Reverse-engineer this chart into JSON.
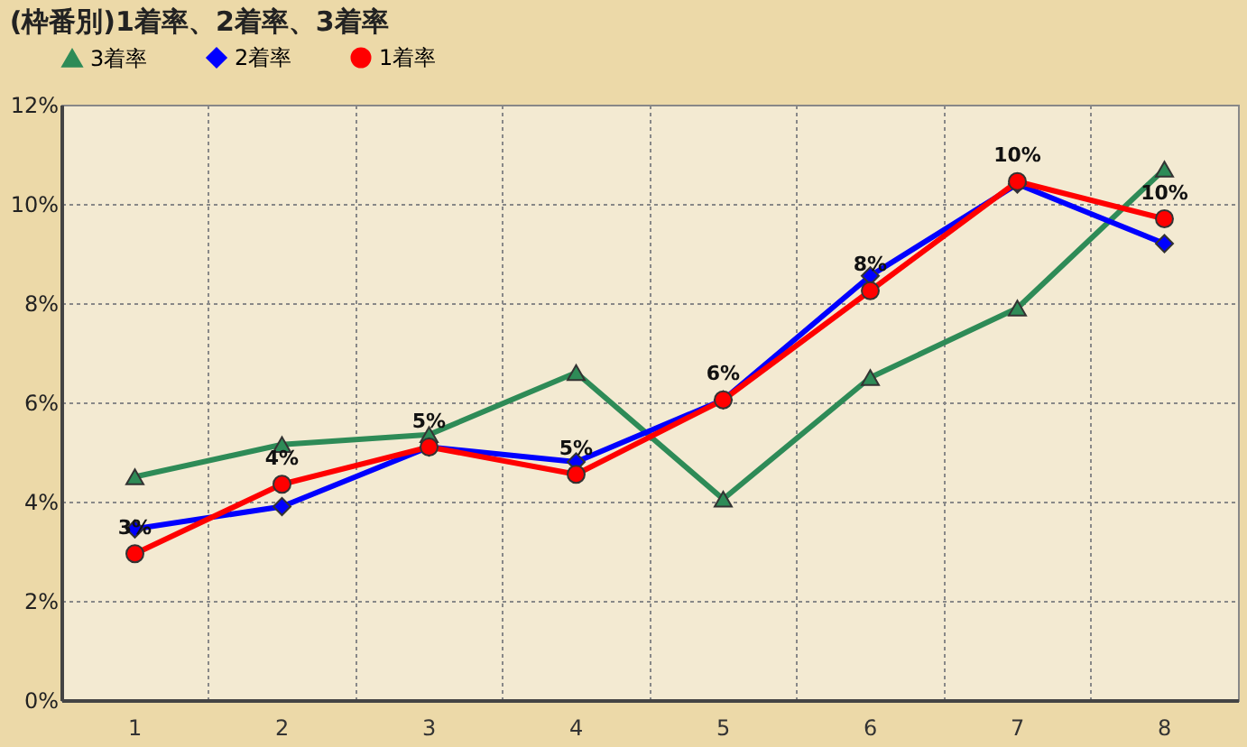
{
  "chart_data": {
    "type": "line",
    "title": "(枠番別)1着率、2着率、3着率",
    "categories": [
      "1",
      "2",
      "3",
      "4",
      "5",
      "6",
      "7",
      "8"
    ],
    "series": [
      {
        "name": "3着率",
        "color": "#2e8b57",
        "marker": "triangle",
        "values": [
          4.5,
          5.15,
          5.35,
          6.6,
          4.05,
          6.5,
          7.9,
          10.7
        ]
      },
      {
        "name": "2着率",
        "color": "#0000ff",
        "marker": "diamond",
        "values": [
          3.45,
          3.9,
          5.1,
          4.8,
          6.05,
          8.55,
          10.4,
          9.2
        ]
      },
      {
        "name": "1着率",
        "color": "#ff0000",
        "marker": "circle",
        "values": [
          2.95,
          4.35,
          5.1,
          4.55,
          6.05,
          8.25,
          10.45,
          9.7
        ],
        "value_labels": [
          "3%",
          "4%",
          "5%",
          "5%",
          "6%",
          "8%",
          "10%",
          "10%"
        ]
      }
    ],
    "ylim": [
      0,
      12
    ],
    "yticks": [
      {
        "value": 0,
        "label": "0%"
      },
      {
        "value": 2,
        "label": "2%"
      },
      {
        "value": 4,
        "label": "4%"
      },
      {
        "value": 6,
        "label": "6%"
      },
      {
        "value": 8,
        "label": "8%"
      },
      {
        "value": 10,
        "label": "10%"
      },
      {
        "value": 12,
        "label": "12%"
      }
    ],
    "grid": true,
    "legend": "top",
    "line_style": "solid"
  }
}
